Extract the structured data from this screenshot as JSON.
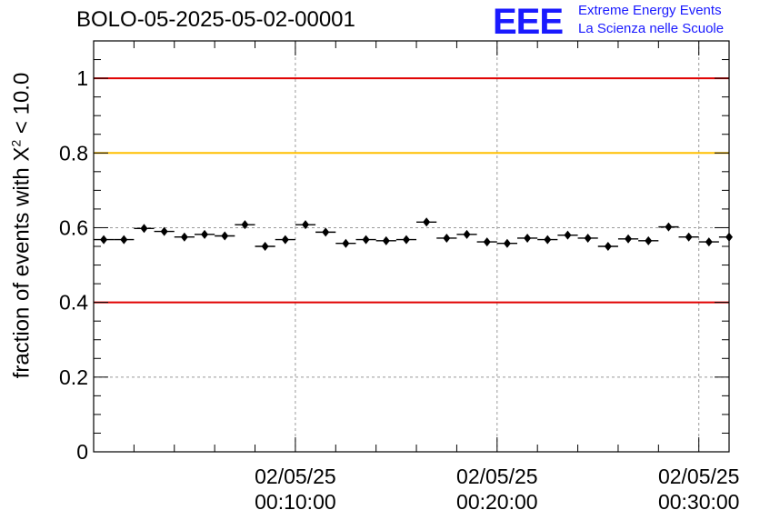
{
  "title": "BOLO-05-2025-05-02-00001",
  "logo": {
    "mark": "EEE",
    "line1": "Extreme Energy Events",
    "line2": "La Scienza nelle Scuole",
    "color": "#1a1aff"
  },
  "chart_data": {
    "type": "scatter",
    "ylabel_prefix": "fraction of events with X",
    "ylabel_sup": "2",
    "ylabel_suffix": " < 10.0",
    "ylim": [
      0,
      1.1
    ],
    "yticks": [
      0,
      0.2,
      0.4,
      0.6,
      0.8,
      1
    ],
    "yticklabels": [
      "0",
      "0.2",
      "0.4",
      "0.6",
      "0.8",
      "1"
    ],
    "xlim_minutes": [
      0,
      31.5
    ],
    "xticks_minutes": [
      10,
      20,
      30
    ],
    "xticklabels": [
      [
        "02/05/25",
        "00:10:00"
      ],
      [
        "02/05/25",
        "00:20:00"
      ],
      [
        "02/05/25",
        "00:30:00"
      ]
    ],
    "grid": true,
    "reference_lines": [
      {
        "y": 1.0,
        "color": "#e00000"
      },
      {
        "y": 0.8,
        "color": "#ffbf00"
      },
      {
        "y": 0.4,
        "color": "#e00000"
      }
    ],
    "bin_width_minutes": 1,
    "x_minutes": [
      0.5,
      1.5,
      2.5,
      3.5,
      4.5,
      5.5,
      6.5,
      7.5,
      8.5,
      9.5,
      10.5,
      11.5,
      12.5,
      13.5,
      14.5,
      15.5,
      16.5,
      17.5,
      18.5,
      19.5,
      20.5,
      21.5,
      22.5,
      23.5,
      24.5,
      25.5,
      26.5,
      27.5,
      28.5,
      29.5,
      30.5,
      31.5
    ],
    "values": [
      0.568,
      0.568,
      0.598,
      0.59,
      0.575,
      0.582,
      0.578,
      0.608,
      0.55,
      0.568,
      0.608,
      0.588,
      0.558,
      0.568,
      0.565,
      0.568,
      0.615,
      0.572,
      0.582,
      0.562,
      0.558,
      0.572,
      0.568,
      0.58,
      0.572,
      0.55,
      0.57,
      0.565,
      0.602,
      0.575,
      0.562,
      0.575
    ]
  }
}
